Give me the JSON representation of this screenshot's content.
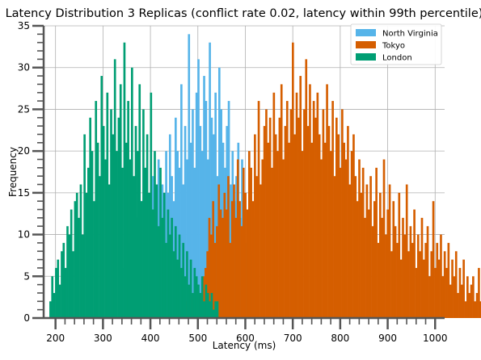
{
  "chart_data": {
    "type": "bar",
    "subtype": "histogram",
    "title": "Latency Distribution 3 Replicas (conflict rate 0.02, latency within 99th percentile)",
    "xlabel": "Latency (ms)",
    "ylabel": "Frequency",
    "xlim": [
      175,
      1020
    ],
    "ylim": [
      0,
      35
    ],
    "x_ticks": [
      200,
      300,
      400,
      500,
      600,
      700,
      800,
      900,
      1000
    ],
    "y_ticks": [
      0,
      5,
      10,
      15,
      20,
      25,
      30,
      35
    ],
    "grid": true,
    "legend_position": "top-right",
    "series": [
      {
        "name": "North Virginia",
        "color": "#56b4e9",
        "x_start": 335,
        "bin_width": 4,
        "values": [
          4,
          5,
          6,
          5,
          9,
          11,
          6,
          8,
          10,
          12,
          9,
          14,
          11,
          8,
          15,
          12,
          10,
          17,
          13,
          12,
          19,
          14,
          16,
          12,
          20,
          15,
          22,
          17,
          14,
          24,
          20,
          18,
          28,
          16,
          23,
          19,
          34,
          21,
          25,
          18,
          27,
          31,
          23,
          20,
          29,
          26,
          19,
          33,
          24,
          22,
          27,
          17,
          30,
          25,
          21,
          18,
          23,
          26,
          16,
          20,
          14,
          17,
          21,
          12,
          19,
          15,
          9,
          13,
          18,
          8,
          12,
          6
        ]
      },
      {
        "name": "Tokyo",
        "color": "#d55e00",
        "x_start": 450,
        "bin_width": 4,
        "values": [
          1,
          0,
          2,
          1,
          1,
          3,
          2,
          1,
          2,
          3,
          1,
          2,
          4,
          3,
          2,
          5,
          6,
          8,
          12,
          10,
          14,
          9,
          11,
          16,
          13,
          12,
          15,
          13,
          17,
          9,
          14,
          16,
          12,
          19,
          14,
          11,
          18,
          15,
          13,
          20,
          18,
          14,
          22,
          17,
          26,
          16,
          19,
          23,
          25,
          21,
          24,
          18,
          27,
          22,
          20,
          24,
          28,
          19,
          23,
          26,
          21,
          25,
          33,
          22,
          27,
          24,
          29,
          20,
          25,
          31,
          23,
          28,
          21,
          26,
          24,
          27,
          22,
          19,
          25,
          21,
          28,
          23,
          20,
          26,
          17,
          24,
          22,
          18,
          25,
          21,
          19,
          23,
          16,
          20,
          22,
          17,
          14,
          19,
          15,
          18,
          12,
          16,
          13,
          17,
          11,
          14,
          18,
          9,
          15,
          12,
          19,
          10,
          13,
          16,
          8,
          14,
          11,
          9,
          15,
          7,
          12,
          10,
          16,
          8,
          11,
          9,
          13,
          6,
          10,
          8,
          12,
          7,
          9,
          11,
          5,
          8,
          14,
          6,
          9,
          7,
          10,
          5,
          8,
          6,
          9,
          4,
          7,
          5,
          8,
          3,
          6,
          4,
          7,
          2,
          5,
          3,
          4,
          5,
          2,
          3,
          6,
          2,
          4,
          3,
          1,
          5,
          2,
          4,
          3,
          1,
          4,
          2,
          5,
          3,
          4,
          5
        ]
      },
      {
        "name": "London",
        "color": "#009e73",
        "x_start": 187,
        "bin_width": 4,
        "values": [
          2,
          5,
          3,
          6,
          7,
          4,
          8,
          9,
          6,
          11,
          10,
          13,
          8,
          14,
          15,
          12,
          16,
          10,
          22,
          15,
          18,
          24,
          20,
          14,
          26,
          21,
          17,
          29,
          23,
          19,
          27,
          16,
          25,
          22,
          31,
          20,
          24,
          28,
          18,
          33,
          21,
          26,
          19,
          30,
          17,
          23,
          20,
          28,
          14,
          25,
          18,
          22,
          15,
          27,
          13,
          20,
          16,
          11,
          18,
          12,
          15,
          9,
          13,
          10,
          12,
          8,
          11,
          7,
          10,
          6,
          9,
          5,
          8,
          4,
          7,
          3,
          6,
          5,
          4,
          3,
          5,
          2,
          4,
          3,
          2,
          3,
          1,
          2,
          2
        ]
      }
    ]
  }
}
